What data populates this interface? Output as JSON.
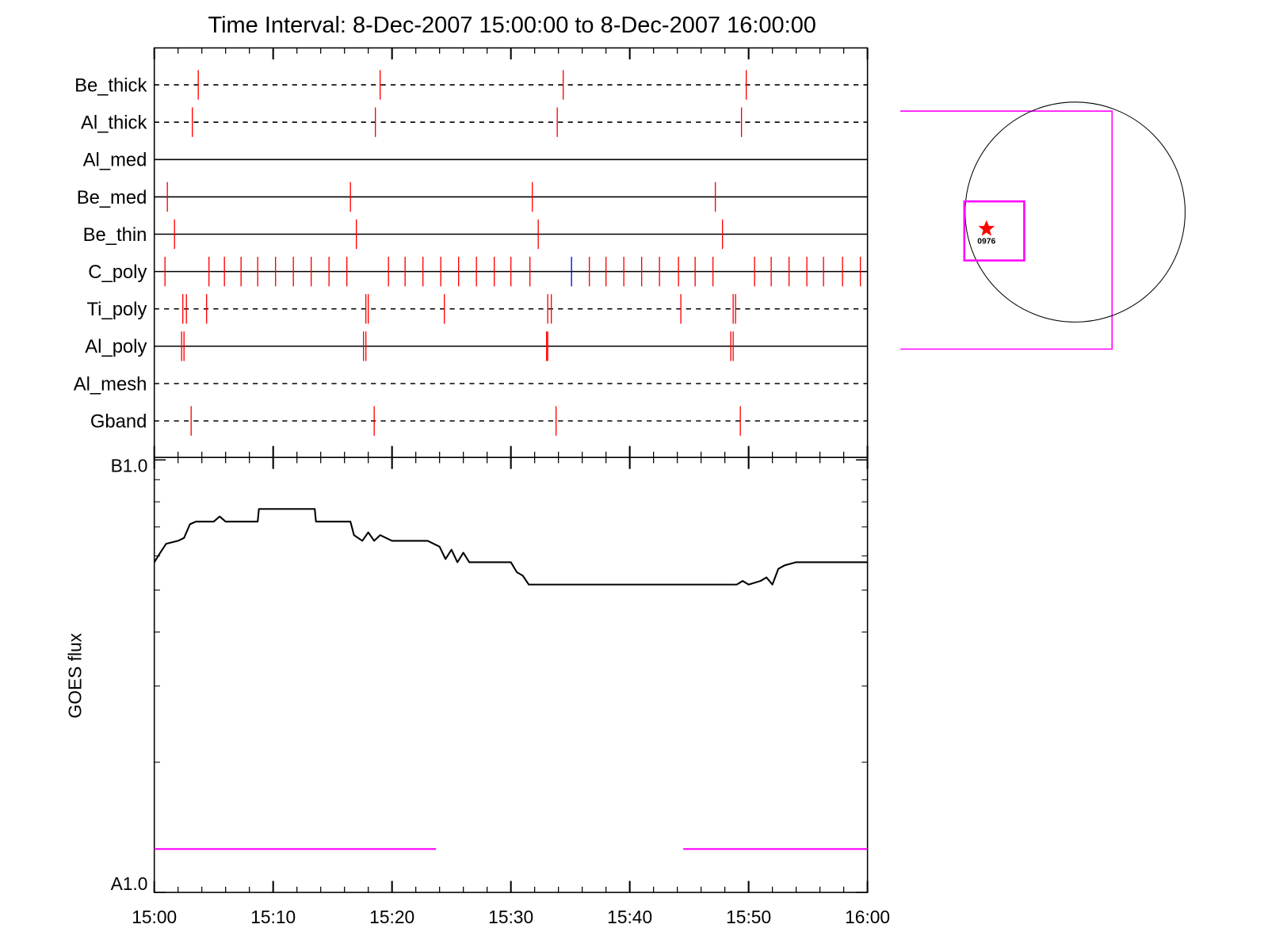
{
  "chart_data": [
    {
      "type": "timeline",
      "title": "Time Interval:  8-Dec-2007 15:00:00 to  8-Dec-2007 16:00:00",
      "xlim": [
        0,
        60
      ],
      "series": [
        {
          "name": "Be_thick",
          "line_style": "dashed",
          "color": "#ff0000",
          "times": [
            3.7,
            19.0,
            34.4,
            49.8
          ]
        },
        {
          "name": "Al_thick",
          "line_style": "dashed",
          "color": "#ff0000",
          "times": [
            3.2,
            18.6,
            33.9,
            49.4
          ]
        },
        {
          "name": "Al_med",
          "line_style": "solid",
          "color": "#ff0000",
          "times": []
        },
        {
          "name": "Be_med",
          "line_style": "solid",
          "color": "#ff0000",
          "times": [
            1.1,
            16.5,
            31.8,
            47.2
          ]
        },
        {
          "name": "Be_thin",
          "line_style": "solid",
          "color": "#ff0000",
          "times": [
            1.7,
            17.0,
            32.3,
            47.8
          ]
        },
        {
          "name": "C_poly",
          "line_style": "solid",
          "color": "#ff0000",
          "times": [
            0.9,
            4.6,
            5.9,
            7.3,
            8.7,
            10.2,
            11.7,
            13.2,
            14.7,
            16.2,
            19.7,
            21.1,
            22.6,
            24.1,
            25.6,
            27.1,
            28.6,
            30.0,
            31.6,
            36.6,
            38.0,
            39.5,
            41.0,
            42.5,
            44.1,
            45.5,
            47.0,
            50.5,
            51.9,
            53.4,
            54.9,
            56.3,
            57.9,
            59.4
          ],
          "alt_color": "#0000ff",
          "alt_times": [
            35.1
          ]
        },
        {
          "name": "Ti_poly",
          "line_style": "dashed",
          "color": "#ff0000",
          "times": [
            2.4,
            2.7,
            4.4,
            17.8,
            18.0,
            24.4,
            33.1,
            33.4,
            44.3,
            48.7,
            48.9
          ]
        },
        {
          "name": "Al_poly",
          "line_style": "solid",
          "color": "#ff0000",
          "times": [
            2.3,
            2.5,
            17.6,
            17.8,
            33.0,
            33.1,
            48.5,
            48.7
          ]
        },
        {
          "name": "Al_mesh",
          "line_style": "dashed",
          "color": "#ff0000",
          "times": []
        },
        {
          "name": "Gband",
          "line_style": "dashed",
          "color": "#ff0000",
          "times": [
            3.1,
            18.5,
            33.8,
            49.3
          ]
        }
      ]
    },
    {
      "type": "line",
      "y_label": "GOES flux",
      "log": true,
      "xlim": [
        0,
        60
      ],
      "xticks": [
        {
          "value": 0,
          "label": "15:00"
        },
        {
          "value": 10,
          "label": "15:10"
        },
        {
          "value": 20,
          "label": "15:20"
        },
        {
          "value": 30,
          "label": "15:30"
        },
        {
          "value": 40,
          "label": "15:40"
        },
        {
          "value": 50,
          "label": "15:50"
        },
        {
          "value": 60,
          "label": "16:00"
        }
      ],
      "xminorticks": [
        2,
        4,
        6,
        8,
        12,
        14,
        16,
        18,
        22,
        24,
        26,
        28,
        32,
        34,
        36,
        38,
        42,
        44,
        46,
        48,
        52,
        54,
        56,
        58
      ],
      "ylim": [
        1e-08,
        1e-07
      ],
      "yticks": [
        {
          "value": 1e-08,
          "label": "A1.0"
        },
        {
          "value": 1e-07,
          "label": "B1.0"
        }
      ],
      "yminorticks": [
        2e-08,
        3e-08,
        4e-08,
        5e-08,
        6e-08,
        7e-08,
        8e-08,
        9e-08
      ],
      "series": [
        {
          "color": "#000000",
          "x": [
            0,
            0.5,
            1,
            2,
            2.5,
            3,
            3.5,
            5,
            5.5,
            6,
            8.7,
            8.8,
            13.5,
            13.6,
            16.5,
            16.8,
            17.5,
            18,
            18.5,
            19,
            20,
            23,
            24,
            24.5,
            25,
            25.5,
            26,
            26.5,
            27,
            30,
            30.5,
            31,
            31.5,
            32,
            49,
            49.5,
            50,
            51,
            51.5,
            52,
            52.5,
            53,
            54,
            60
          ],
          "values": [
            5.8e-08,
            6.1e-08,
            6.4e-08,
            6.5e-08,
            6.6e-08,
            7.1e-08,
            7.2e-08,
            7.2e-08,
            7.4e-08,
            7.2e-08,
            7.2e-08,
            7.7e-08,
            7.7e-08,
            7.2e-08,
            7.2e-08,
            6.7e-08,
            6.5e-08,
            6.8e-08,
            6.5e-08,
            6.7e-08,
            6.5e-08,
            6.5e-08,
            6.3e-08,
            5.9e-08,
            6.2e-08,
            5.8e-08,
            6.1e-08,
            5.8e-08,
            5.8e-08,
            5.8e-08,
            5.5e-08,
            5.4e-08,
            5.15e-08,
            5.15e-08,
            5.15e-08,
            5.25e-08,
            5.15e-08,
            5.25e-08,
            5.35e-08,
            5.15e-08,
            5.6e-08,
            5.7e-08,
            5.8e-08,
            5.8e-08
          ]
        },
        {
          "color": "#ff00ff",
          "x": [
            0,
            23.7,
            24,
            44.5,
            60
          ],
          "values": [
            1.26e-08,
            1.26e-08,
            null,
            1.26e-08,
            1.26e-08
          ]
        }
      ]
    }
  ],
  "inset": {
    "label": "0976"
  }
}
